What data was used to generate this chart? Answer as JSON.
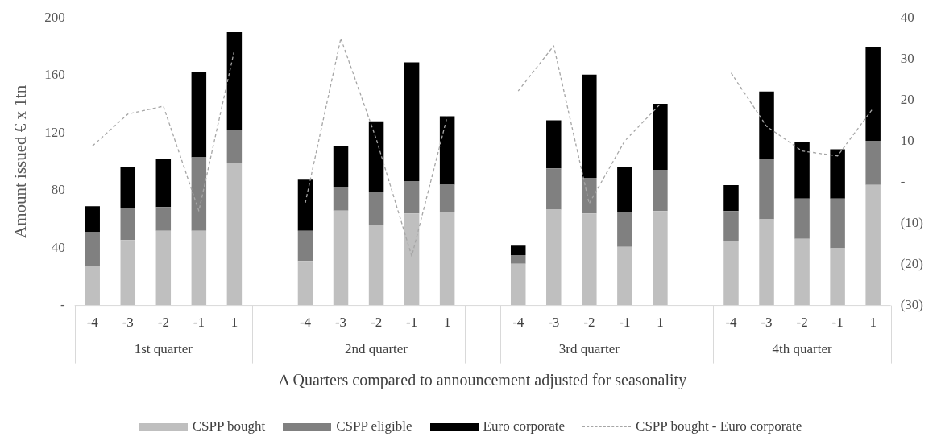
{
  "chart_data": {
    "type": "bar",
    "stacked": true,
    "categories": [
      "-4",
      "-3",
      "-2",
      "-1",
      "1",
      null,
      "-4",
      "-3",
      "-2",
      "-1",
      "1",
      null,
      "-4",
      "-3",
      "-2",
      "-1",
      "1",
      null,
      "-4",
      "-3",
      "-2",
      "-1",
      "1"
    ],
    "series": [
      {
        "name": "CSPP bought",
        "color": "#bfbfbf",
        "values": [
          27.5,
          45.5,
          52,
          52,
          99,
          null,
          31,
          66,
          56,
          64,
          65,
          null,
          29,
          66.7,
          64,
          40.7,
          65.6,
          null,
          44.6,
          60,
          46.4,
          39.8,
          83.9
        ]
      },
      {
        "name": "CSPP eligible",
        "color": "#808080",
        "values": [
          23.5,
          22,
          16.5,
          51,
          23,
          null,
          21,
          16,
          23,
          22.5,
          19,
          null,
          6,
          28.6,
          24.7,
          24,
          28.8,
          null,
          21,
          42,
          27.9,
          34.5,
          30.6
        ]
      },
      {
        "name": "Euro corporate",
        "color": "#000000",
        "values": [
          18,
          28.5,
          33.5,
          59,
          68,
          null,
          35.5,
          29,
          49,
          82.5,
          47.5,
          null,
          6.6,
          33.4,
          71.8,
          31.3,
          45.9,
          null,
          18.1,
          46.8,
          39.1,
          34.3,
          64.9
        ]
      },
      {
        "name": "CSPP bought - Euro corporate",
        "type": "line",
        "axis": "y2",
        "color": "#a6a6a6",
        "line_style": "dashed",
        "values": [
          8.8,
          16.6,
          18.5,
          -7,
          32.1,
          null,
          -5,
          35,
          10.5,
          -18,
          16,
          null,
          22.2,
          33.2,
          -5.2,
          10,
          19,
          null,
          26.6,
          13.6,
          7.6,
          6.4,
          18
        ]
      }
    ],
    "marker": "none",
    "ylabel": "Amount issued € x 1tn",
    "xlabel": "∆ Quarters compared to announcement adjusted for seasonality",
    "ylim": [
      0,
      200
    ],
    "yticks": [
      {
        "value": 0,
        "label": "-"
      },
      40,
      80,
      120,
      160,
      200
    ],
    "y2lim": [
      -30,
      40
    ],
    "y2ticks": [
      {
        "value": -30,
        "label": "(30)"
      },
      {
        "value": -20,
        "label": "(20)"
      },
      {
        "value": -10,
        "label": "(10)"
      },
      {
        "value": 0,
        "label": "-"
      },
      10,
      20,
      30,
      40
    ],
    "annotations": [
      "1st quarter",
      "2nd quarter",
      "3rd quarter",
      "4th quarter"
    ],
    "grid": false,
    "legend": "bottom"
  }
}
